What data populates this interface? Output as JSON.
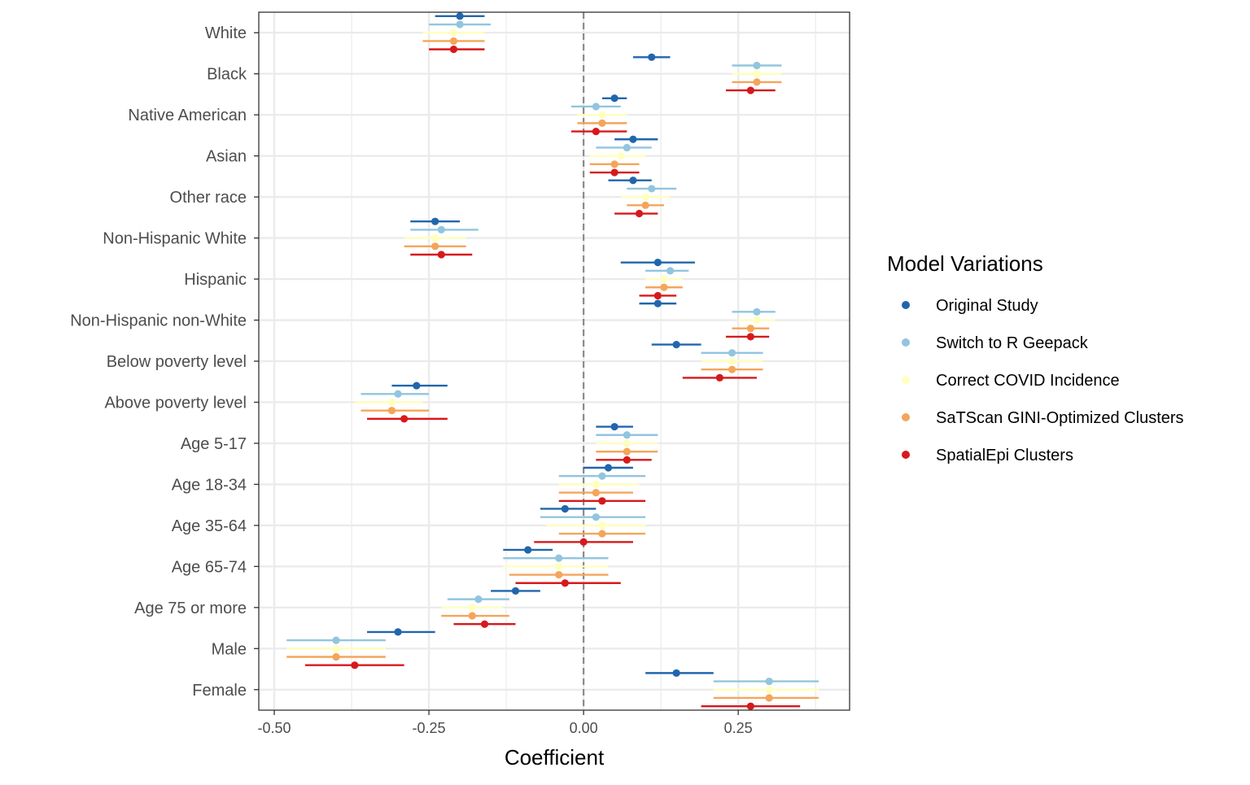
{
  "chart_data": {
    "type": "forest",
    "xlabel": "Coefficient",
    "xlim": [
      -0.525,
      0.43
    ],
    "xticks": [
      -0.5,
      -0.25,
      0.0,
      0.25
    ],
    "xtick_labels": [
      "-0.50",
      "-0.25",
      "0.00",
      "0.25"
    ],
    "reference_line": 0,
    "grid": true,
    "legend_position": "right",
    "legend_title": "Model Variations",
    "categories": [
      "White",
      "Black",
      "Native American",
      "Asian",
      "Other race",
      "Non-Hispanic White",
      "Hispanic",
      "Non-Hispanic non-White",
      "Below poverty level",
      "Above poverty level",
      "Age 5-17",
      "Age 18-34",
      "Age 35-64",
      "Age 65-74",
      "Age 75 or more",
      "Male",
      "Female"
    ],
    "series": [
      {
        "name": "Original Study",
        "color": "#2166ac",
        "estimate": [
          -0.2,
          0.11,
          0.05,
          0.08,
          0.08,
          -0.24,
          0.12,
          0.12,
          0.15,
          -0.27,
          0.05,
          0.04,
          -0.03,
          -0.09,
          -0.11,
          -0.3,
          0.15
        ],
        "lower": [
          -0.24,
          0.08,
          0.03,
          0.05,
          0.04,
          -0.28,
          0.06,
          0.09,
          0.11,
          -0.31,
          0.02,
          0.0,
          -0.07,
          -0.13,
          -0.15,
          -0.35,
          0.1
        ],
        "upper": [
          -0.16,
          0.14,
          0.07,
          0.12,
          0.11,
          -0.2,
          0.18,
          0.15,
          0.19,
          -0.22,
          0.08,
          0.08,
          0.02,
          -0.05,
          -0.07,
          -0.24,
          0.21
        ]
      },
      {
        "name": "Switch to R Geepack",
        "color": "#92c5de",
        "estimate": [
          -0.2,
          0.28,
          0.02,
          0.07,
          0.11,
          -0.23,
          0.14,
          0.28,
          0.24,
          -0.3,
          0.07,
          0.03,
          0.02,
          -0.04,
          -0.17,
          -0.4,
          0.3
        ],
        "lower": [
          -0.25,
          0.24,
          -0.02,
          0.02,
          0.07,
          -0.28,
          0.1,
          0.24,
          0.19,
          -0.36,
          0.02,
          -0.04,
          -0.07,
          -0.13,
          -0.22,
          -0.48,
          0.21
        ],
        "upper": [
          -0.15,
          0.32,
          0.06,
          0.11,
          0.15,
          -0.17,
          0.17,
          0.31,
          0.29,
          -0.25,
          0.12,
          0.1,
          0.1,
          0.04,
          -0.12,
          -0.32,
          0.38
        ]
      },
      {
        "name": "Correct COVID Incidence",
        "color": "#ffffbf",
        "estimate": [
          -0.21,
          0.28,
          0.03,
          0.06,
          0.1,
          -0.24,
          0.13,
          0.28,
          0.24,
          -0.31,
          0.07,
          0.02,
          0.03,
          -0.04,
          -0.18,
          -0.4,
          0.3
        ],
        "lower": [
          -0.26,
          0.24,
          -0.01,
          0.01,
          0.06,
          -0.29,
          0.1,
          0.25,
          0.19,
          -0.37,
          0.02,
          -0.04,
          -0.06,
          -0.13,
          -0.23,
          -0.48,
          0.21
        ],
        "upper": [
          -0.16,
          0.32,
          0.07,
          0.1,
          0.14,
          -0.19,
          0.16,
          0.31,
          0.29,
          -0.26,
          0.12,
          0.09,
          0.1,
          0.04,
          -0.13,
          -0.32,
          0.38
        ]
      },
      {
        "name": "SaTScan GINI-Optimized Clusters",
        "color": "#f4a55a",
        "estimate": [
          -0.21,
          0.28,
          0.03,
          0.05,
          0.1,
          -0.24,
          0.13,
          0.27,
          0.24,
          -0.31,
          0.07,
          0.02,
          0.03,
          -0.04,
          -0.18,
          -0.4,
          0.3
        ],
        "lower": [
          -0.26,
          0.24,
          -0.01,
          0.01,
          0.07,
          -0.29,
          0.1,
          0.24,
          0.19,
          -0.36,
          0.02,
          -0.04,
          -0.04,
          -0.12,
          -0.23,
          -0.48,
          0.21
        ],
        "upper": [
          -0.16,
          0.32,
          0.07,
          0.09,
          0.13,
          -0.19,
          0.16,
          0.3,
          0.29,
          -0.25,
          0.12,
          0.08,
          0.1,
          0.04,
          -0.12,
          -0.32,
          0.38
        ]
      },
      {
        "name": "SpatialEpi Clusters",
        "color": "#d7191c",
        "estimate": [
          -0.21,
          0.27,
          0.02,
          0.05,
          0.09,
          -0.23,
          0.12,
          0.27,
          0.22,
          -0.29,
          0.07,
          0.03,
          0.0,
          -0.03,
          -0.16,
          -0.37,
          0.27
        ],
        "lower": [
          -0.25,
          0.23,
          -0.02,
          0.01,
          0.05,
          -0.28,
          0.09,
          0.23,
          0.16,
          -0.35,
          0.02,
          -0.04,
          -0.08,
          -0.11,
          -0.21,
          -0.45,
          0.19
        ],
        "upper": [
          -0.16,
          0.31,
          0.07,
          0.09,
          0.12,
          -0.18,
          0.15,
          0.3,
          0.28,
          -0.22,
          0.11,
          0.1,
          0.08,
          0.06,
          -0.11,
          -0.29,
          0.35
        ]
      }
    ]
  }
}
